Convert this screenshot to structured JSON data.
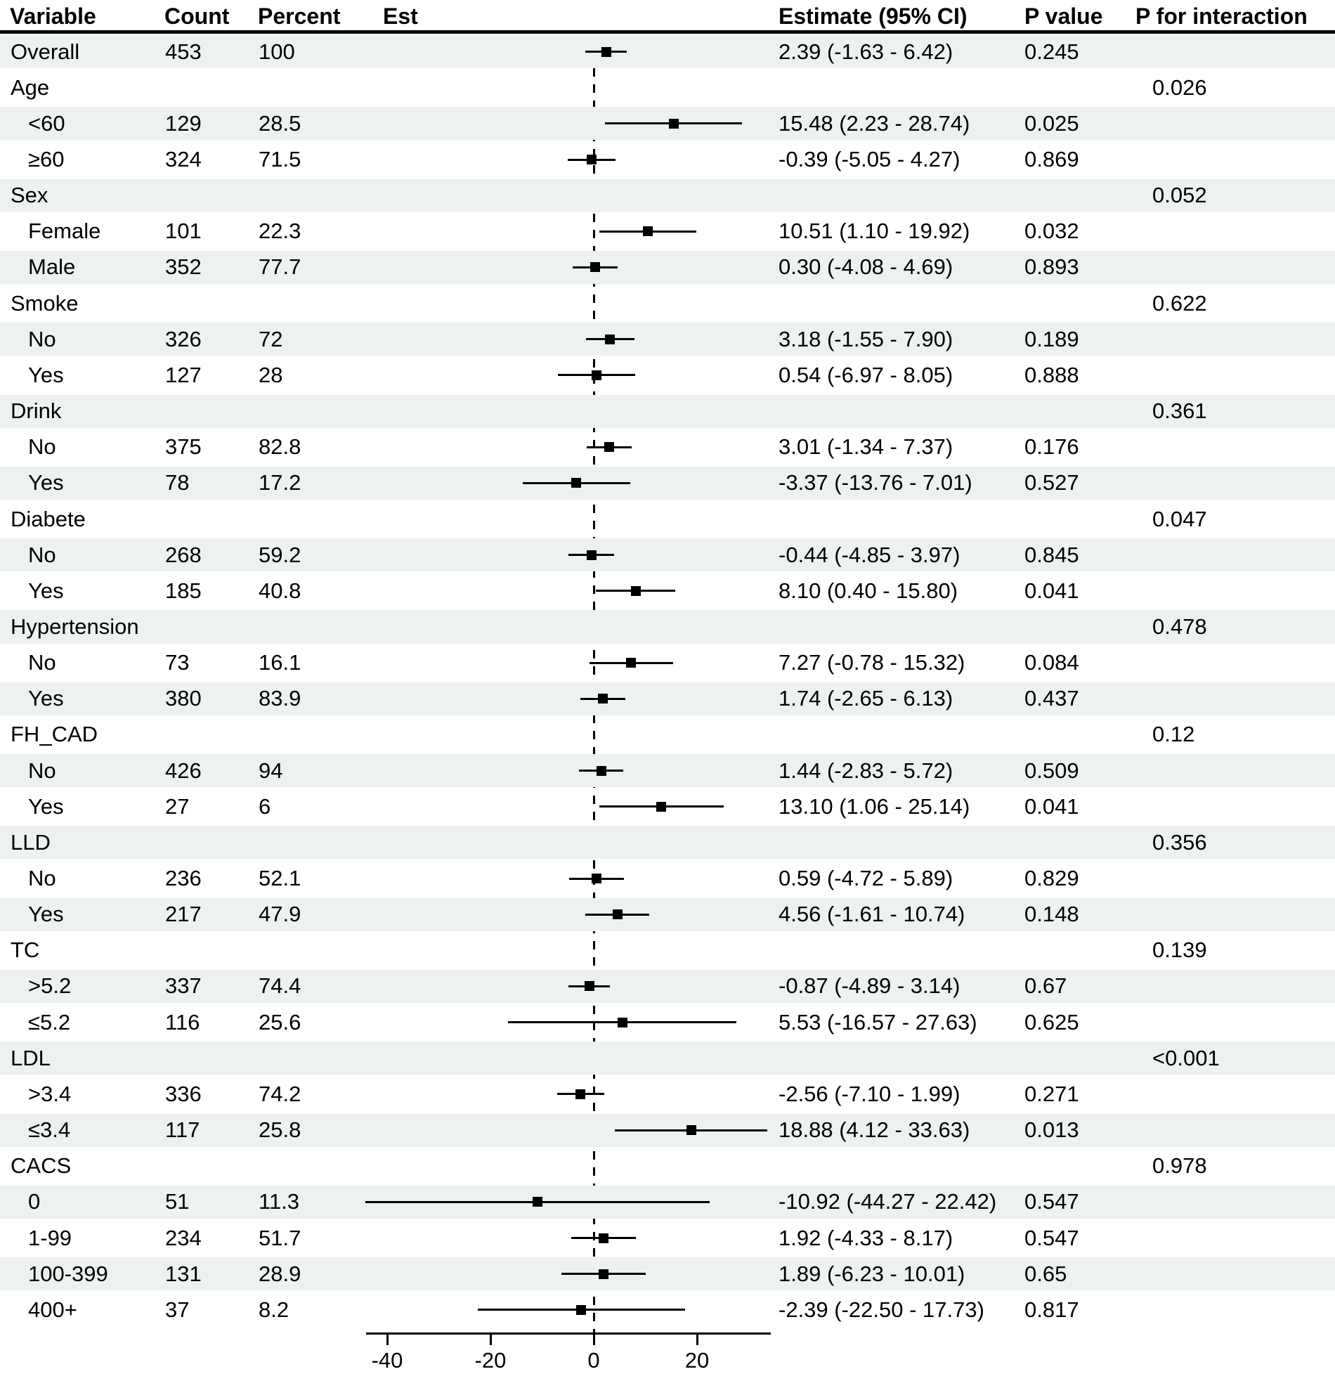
{
  "header": {
    "variable": "Variable",
    "count": "Count",
    "percent": "Percent",
    "est": "Est",
    "estimate_ci": "Estimate (95% CI)",
    "p_value": "P value",
    "p_interaction": "P for interaction"
  },
  "colors": {
    "row_shade": "#edf1f0",
    "ink": "#000000"
  },
  "chart_data": {
    "type": "forest",
    "title": "",
    "xlabel": "",
    "legend": "none",
    "axis": {
      "ticks": [
        -40,
        -20,
        0,
        20
      ],
      "xlim": [
        -44.1,
        34.3
      ],
      "zero_line": 0,
      "grid": false
    },
    "rows": [
      {
        "label": "Overall",
        "level": "top",
        "count": "453",
        "percent": "100",
        "est": 2.39,
        "lo": -1.63,
        "hi": 6.42,
        "ci_text": "2.39 (-1.63 - 6.42)",
        "p": "0.245",
        "p_int": ""
      },
      {
        "label": "Age",
        "level": "group",
        "count": "",
        "percent": "",
        "est": null,
        "lo": null,
        "hi": null,
        "ci_text": "",
        "p": "",
        "p_int": "0.026"
      },
      {
        "label": "<60",
        "level": "sub",
        "count": "129",
        "percent": "28.5",
        "est": 15.48,
        "lo": 2.23,
        "hi": 28.74,
        "ci_text": "15.48 (2.23 - 28.74)",
        "p": "0.025",
        "p_int": ""
      },
      {
        "label": "≥60",
        "level": "sub",
        "count": "324",
        "percent": "71.5",
        "est": -0.39,
        "lo": -5.05,
        "hi": 4.27,
        "ci_text": "-0.39 (-5.05 - 4.27)",
        "p": "0.869",
        "p_int": ""
      },
      {
        "label": "Sex",
        "level": "group",
        "count": "",
        "percent": "",
        "est": null,
        "lo": null,
        "hi": null,
        "ci_text": "",
        "p": "",
        "p_int": "0.052"
      },
      {
        "label": "Female",
        "level": "sub",
        "count": "101",
        "percent": "22.3",
        "est": 10.51,
        "lo": 1.1,
        "hi": 19.92,
        "ci_text": "10.51 (1.10 - 19.92)",
        "p": "0.032",
        "p_int": ""
      },
      {
        "label": "Male",
        "level": "sub",
        "count": "352",
        "percent": "77.7",
        "est": 0.3,
        "lo": -4.08,
        "hi": 4.69,
        "ci_text": "0.30 (-4.08 - 4.69)",
        "p": "0.893",
        "p_int": ""
      },
      {
        "label": "Smoke",
        "level": "group",
        "count": "",
        "percent": "",
        "est": null,
        "lo": null,
        "hi": null,
        "ci_text": "",
        "p": "",
        "p_int": "0.622"
      },
      {
        "label": "No",
        "level": "sub",
        "count": "326",
        "percent": "72",
        "est": 3.18,
        "lo": -1.55,
        "hi": 7.9,
        "ci_text": "3.18 (-1.55 - 7.90)",
        "p": "0.189",
        "p_int": ""
      },
      {
        "label": "Yes",
        "level": "sub",
        "count": "127",
        "percent": "28",
        "est": 0.54,
        "lo": -6.97,
        "hi": 8.05,
        "ci_text": "0.54 (-6.97 - 8.05)",
        "p": "0.888",
        "p_int": ""
      },
      {
        "label": "Drink",
        "level": "group",
        "count": "",
        "percent": "",
        "est": null,
        "lo": null,
        "hi": null,
        "ci_text": "",
        "p": "",
        "p_int": "0.361"
      },
      {
        "label": "No",
        "level": "sub",
        "count": "375",
        "percent": "82.8",
        "est": 3.01,
        "lo": -1.34,
        "hi": 7.37,
        "ci_text": "3.01 (-1.34 - 7.37)",
        "p": "0.176",
        "p_int": ""
      },
      {
        "label": "Yes",
        "level": "sub",
        "count": "78",
        "percent": "17.2",
        "est": -3.37,
        "lo": -13.76,
        "hi": 7.01,
        "ci_text": "-3.37 (-13.76 - 7.01)",
        "p": "0.527",
        "p_int": ""
      },
      {
        "label": "Diabete",
        "level": "group",
        "count": "",
        "percent": "",
        "est": null,
        "lo": null,
        "hi": null,
        "ci_text": "",
        "p": "",
        "p_int": "0.047"
      },
      {
        "label": "No",
        "level": "sub",
        "count": "268",
        "percent": "59.2",
        "est": -0.44,
        "lo": -4.85,
        "hi": 3.97,
        "ci_text": "-0.44 (-4.85 - 3.97)",
        "p": "0.845",
        "p_int": ""
      },
      {
        "label": "Yes",
        "level": "sub",
        "count": "185",
        "percent": "40.8",
        "est": 8.1,
        "lo": 0.4,
        "hi": 15.8,
        "ci_text": "8.10 (0.40 - 15.80)",
        "p": "0.041",
        "p_int": ""
      },
      {
        "label": "Hypertension",
        "level": "group",
        "count": "",
        "percent": "",
        "est": null,
        "lo": null,
        "hi": null,
        "ci_text": "",
        "p": "",
        "p_int": "0.478"
      },
      {
        "label": "No",
        "level": "sub",
        "count": "73",
        "percent": "16.1",
        "est": 7.27,
        "lo": -0.78,
        "hi": 15.32,
        "ci_text": "7.27 (-0.78 - 15.32)",
        "p": "0.084",
        "p_int": ""
      },
      {
        "label": "Yes",
        "level": "sub",
        "count": "380",
        "percent": "83.9",
        "est": 1.74,
        "lo": -2.65,
        "hi": 6.13,
        "ci_text": "1.74 (-2.65 - 6.13)",
        "p": "0.437",
        "p_int": ""
      },
      {
        "label": "FH_CAD",
        "level": "group",
        "count": "",
        "percent": "",
        "est": null,
        "lo": null,
        "hi": null,
        "ci_text": "",
        "p": "",
        "p_int": "0.12"
      },
      {
        "label": "No",
        "level": "sub",
        "count": "426",
        "percent": "94",
        "est": 1.44,
        "lo": -2.83,
        "hi": 5.72,
        "ci_text": "1.44 (-2.83 - 5.72)",
        "p": "0.509",
        "p_int": ""
      },
      {
        "label": "Yes",
        "level": "sub",
        "count": "27",
        "percent": "6",
        "est": 13.1,
        "lo": 1.06,
        "hi": 25.14,
        "ci_text": "13.10 (1.06 - 25.14)",
        "p": "0.041",
        "p_int": ""
      },
      {
        "label": "LLD",
        "level": "group",
        "count": "",
        "percent": "",
        "est": null,
        "lo": null,
        "hi": null,
        "ci_text": "",
        "p": "",
        "p_int": "0.356"
      },
      {
        "label": "No",
        "level": "sub",
        "count": "236",
        "percent": "52.1",
        "est": 0.59,
        "lo": -4.72,
        "hi": 5.89,
        "ci_text": "0.59 (-4.72 - 5.89)",
        "p": "0.829",
        "p_int": ""
      },
      {
        "label": "Yes",
        "level": "sub",
        "count": "217",
        "percent": "47.9",
        "est": 4.56,
        "lo": -1.61,
        "hi": 10.74,
        "ci_text": "4.56 (-1.61 - 10.74)",
        "p": "0.148",
        "p_int": ""
      },
      {
        "label": "TC",
        "level": "group",
        "count": "",
        "percent": "",
        "est": null,
        "lo": null,
        "hi": null,
        "ci_text": "",
        "p": "",
        "p_int": "0.139"
      },
      {
        "label": ">5.2",
        "level": "sub",
        "count": "337",
        "percent": "74.4",
        "est": -0.87,
        "lo": -4.89,
        "hi": 3.14,
        "ci_text": "-0.87 (-4.89 - 3.14)",
        "p": "0.67",
        "p_int": ""
      },
      {
        "label": "≤5.2",
        "level": "sub",
        "count": "116",
        "percent": "25.6",
        "est": 5.53,
        "lo": -16.57,
        "hi": 27.63,
        "ci_text": "5.53 (-16.57 - 27.63)",
        "p": "0.625",
        "p_int": ""
      },
      {
        "label": "LDL",
        "level": "group",
        "count": "",
        "percent": "",
        "est": null,
        "lo": null,
        "hi": null,
        "ci_text": "",
        "p": "",
        "p_int": "<0.001"
      },
      {
        "label": ">3.4",
        "level": "sub",
        "count": "336",
        "percent": "74.2",
        "est": -2.56,
        "lo": -7.1,
        "hi": 1.99,
        "ci_text": "-2.56 (-7.10 - 1.99)",
        "p": "0.271",
        "p_int": ""
      },
      {
        "label": "≤3.4",
        "level": "sub",
        "count": "117",
        "percent": "25.8",
        "est": 18.88,
        "lo": 4.12,
        "hi": 33.63,
        "ci_text": "18.88 (4.12 - 33.63)",
        "p": "0.013",
        "p_int": ""
      },
      {
        "label": "CACS",
        "level": "group",
        "count": "",
        "percent": "",
        "est": null,
        "lo": null,
        "hi": null,
        "ci_text": "",
        "p": "",
        "p_int": "0.978"
      },
      {
        "label": "0",
        "level": "sub",
        "count": "51",
        "percent": "11.3",
        "est": -10.92,
        "lo": -44.27,
        "hi": 22.42,
        "ci_text": "-10.92 (-44.27 - 22.42)",
        "p": "0.547",
        "p_int": ""
      },
      {
        "label": "1-99",
        "level": "sub",
        "count": "234",
        "percent": "51.7",
        "est": 1.92,
        "lo": -4.33,
        "hi": 8.17,
        "ci_text": "1.92 (-4.33 - 8.17)",
        "p": "0.547",
        "p_int": ""
      },
      {
        "label": "100-399",
        "level": "sub",
        "count": "131",
        "percent": "28.9",
        "est": 1.89,
        "lo": -6.23,
        "hi": 10.01,
        "ci_text": "1.89 (-6.23 - 10.01)",
        "p": "0.65",
        "p_int": ""
      },
      {
        "label": "400+",
        "level": "sub",
        "count": "37",
        "percent": "8.2",
        "est": -2.39,
        "lo": -22.5,
        "hi": 17.73,
        "ci_text": "-2.39 (-22.50 - 17.73)",
        "p": "0.817",
        "p_int": ""
      }
    ]
  }
}
